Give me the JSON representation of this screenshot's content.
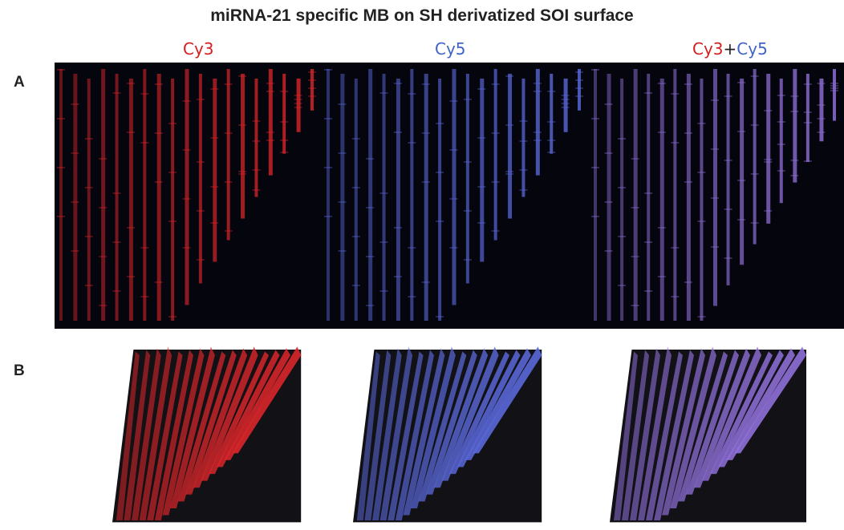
{
  "figure": {
    "title": "miRNA-21 specific MB on SH derivatized SOI surface",
    "columns": [
      {
        "parts": [
          {
            "text": "Cy3",
            "color": "#d62020"
          }
        ]
      },
      {
        "parts": [
          {
            "text": "Cy5",
            "color": "#3f63c9"
          }
        ]
      },
      {
        "parts": [
          {
            "text": "Cy3",
            "color": "#d62020"
          },
          {
            "text": "+",
            "color": "#222222"
          },
          {
            "text": "Cy5",
            "color": "#3f63c9"
          }
        ]
      }
    ],
    "rows": [
      "A",
      "B"
    ],
    "panel_colors": {
      "cy3": "#d8262a",
      "cy5": "#5a68d8",
      "merge": "#8f70d8",
      "background": "#05050e"
    }
  }
}
